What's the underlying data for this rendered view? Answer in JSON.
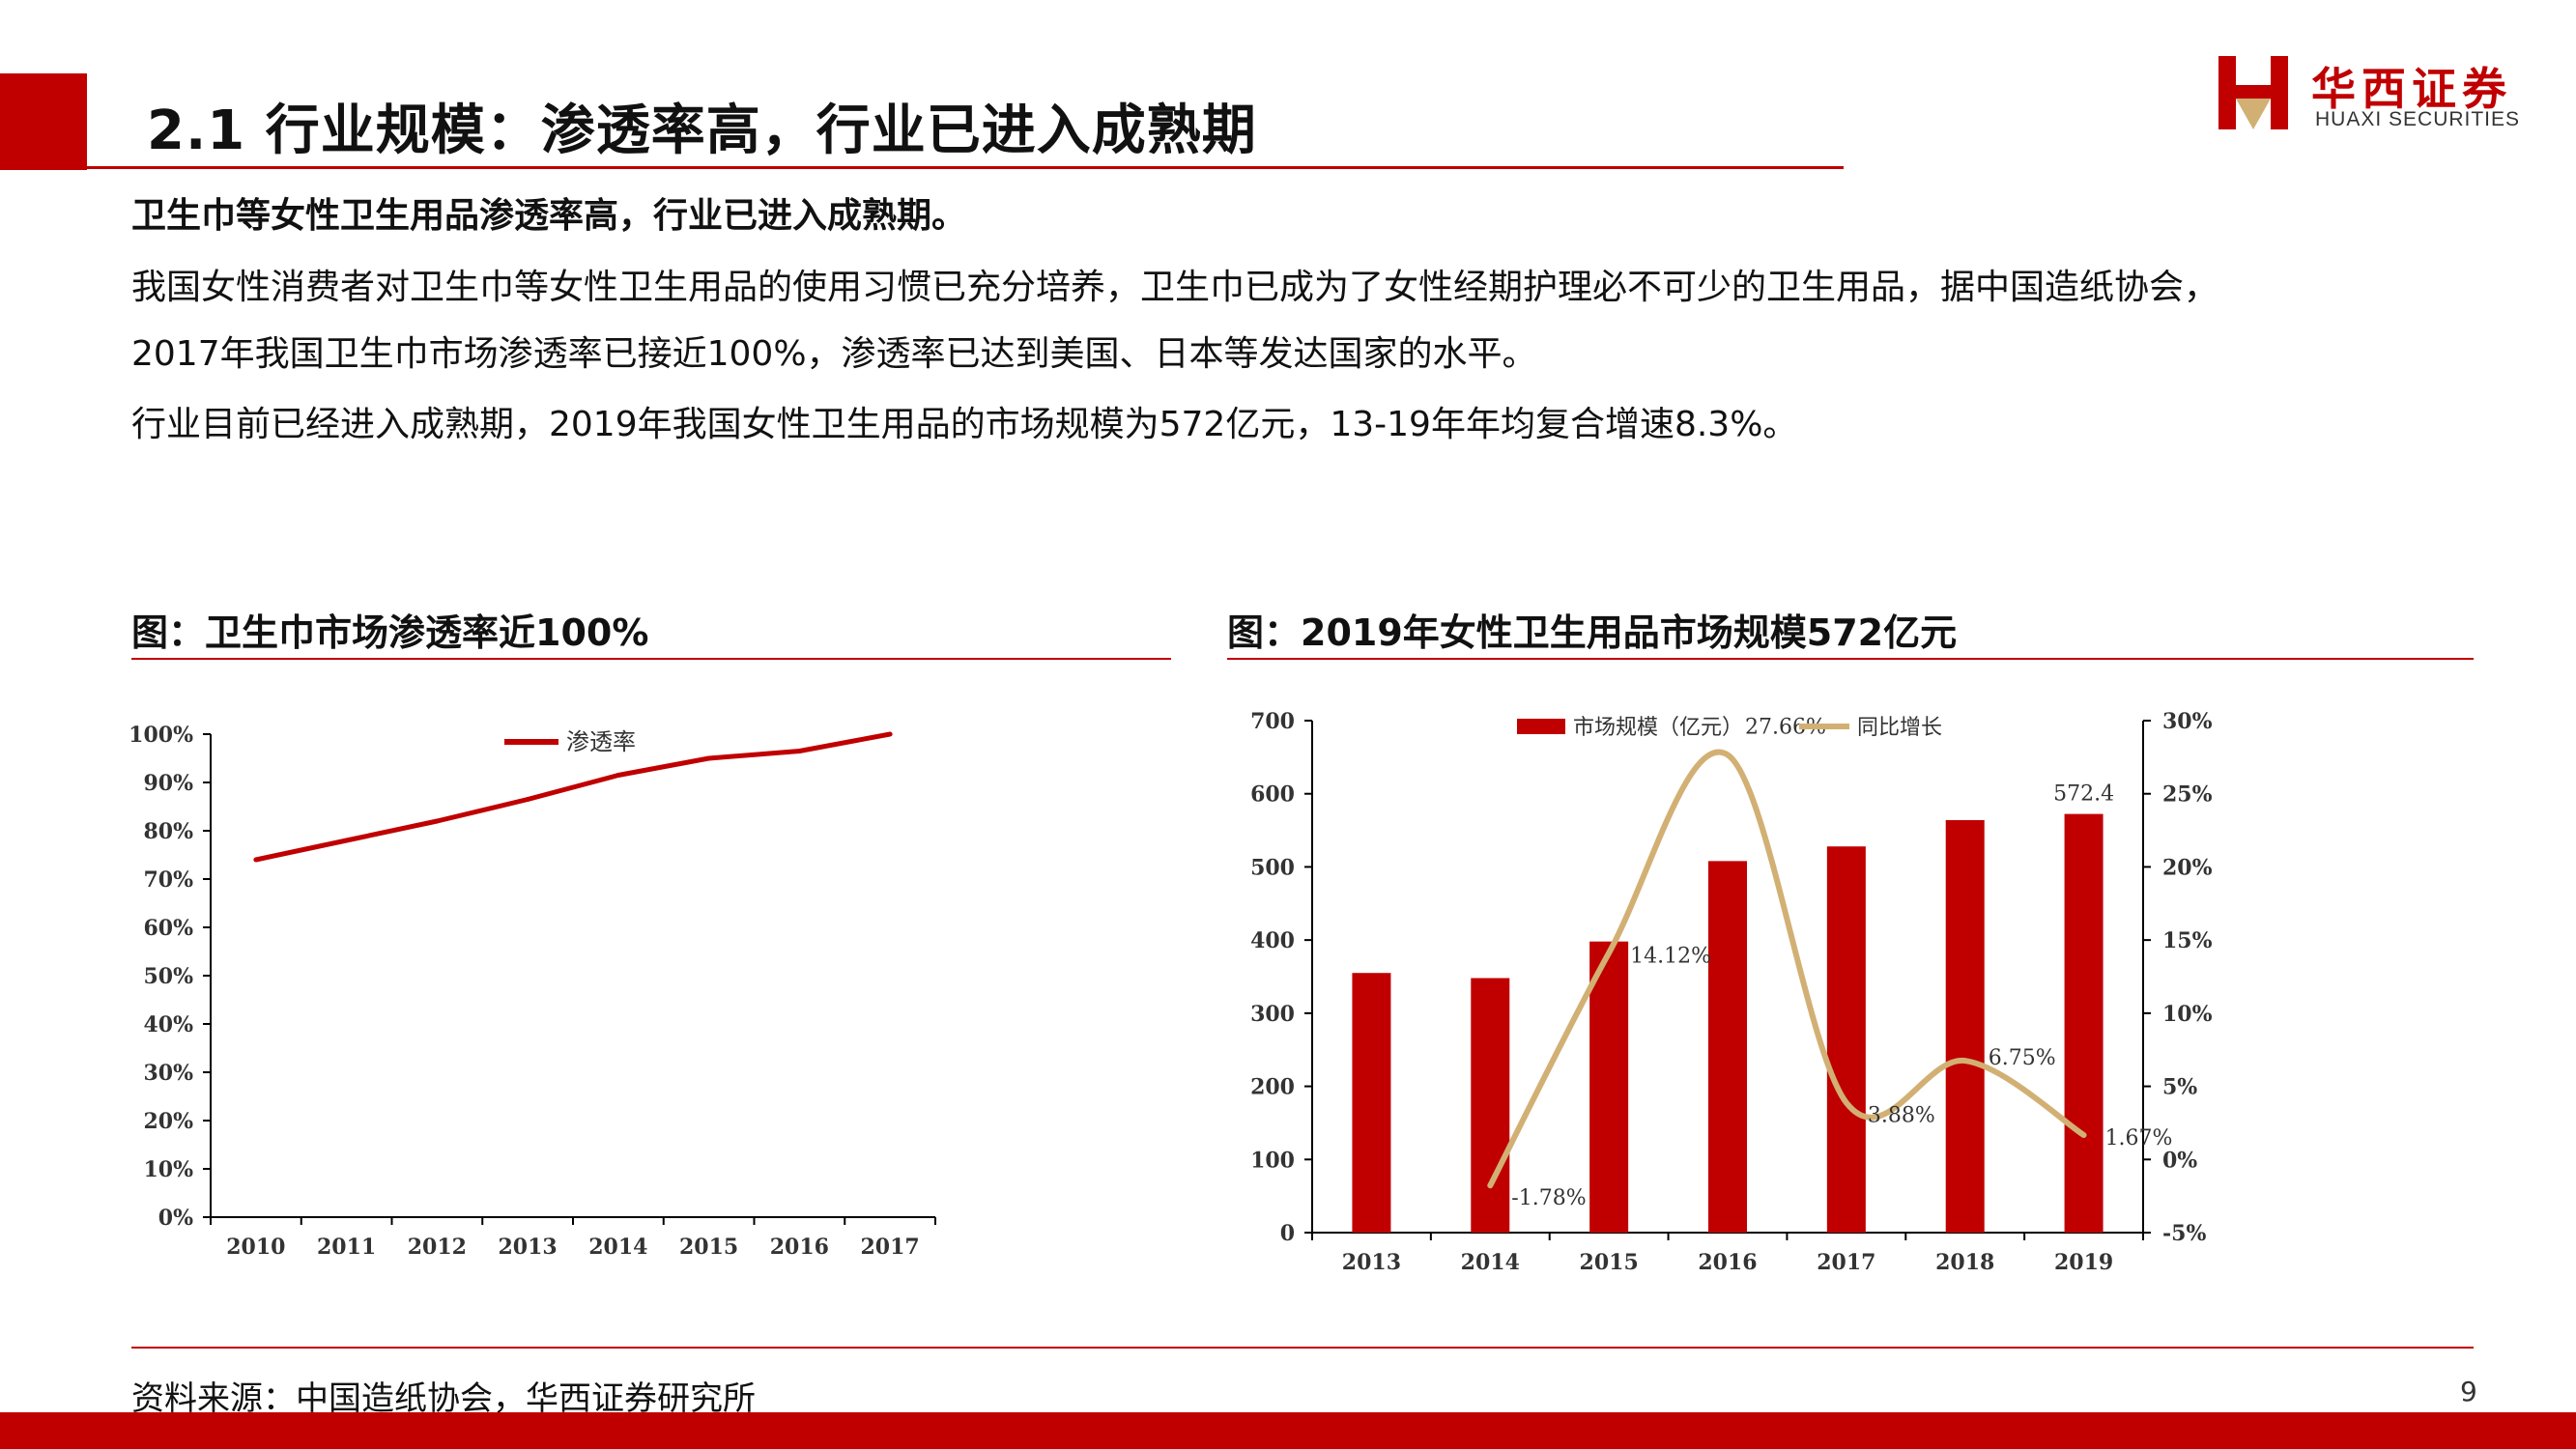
{
  "header": {
    "title": "2.1 行业规模：渗透率高，行业已进入成熟期",
    "logo_cn": "华西证券",
    "logo_en": "HUAXI SECURITIES"
  },
  "body": {
    "heading": "卫生巾等女性卫生用品渗透率高，行业已进入成熟期。",
    "para1_line1": "我国女性消费者对卫生巾等女性卫生用品的使用习惯已充分培养，卫生巾已成为了女性经期护理必不可少的卫生用品，据中国造纸协会，",
    "para1_line2": "2017年我国卫生巾市场渗透率已接近100%，渗透率已达到美国、日本等发达国家的水平。",
    "para2": "行业目前已经进入成熟期，2019年我国女性卫生用品的市场规模为572亿元，13-19年年均复合增速8.3%。"
  },
  "figures": {
    "left_title": "图：卫生巾市场渗透率近100%",
    "right_title": "图：2019年女性卫生用品市场规模572亿元"
  },
  "footer": {
    "source": "资料来源：中国造纸协会，华西证券研究所",
    "page": "9"
  },
  "colors": {
    "brand_red": "#c00000",
    "line_tan": "#d2b074"
  },
  "chart_data": [
    {
      "type": "line",
      "categories": [
        "2010",
        "2011",
        "2012",
        "2013",
        "2014",
        "2015",
        "2016",
        "2017"
      ],
      "series": [
        {
          "name": "渗透率",
          "values": [
            74,
            78,
            82,
            86.5,
            91.5,
            95,
            96.5,
            100
          ]
        }
      ],
      "ylim": [
        0,
        100
      ],
      "y_ticks": [
        "0%",
        "10%",
        "20%",
        "30%",
        "40%",
        "50%",
        "60%",
        "70%",
        "80%",
        "90%",
        "100%"
      ],
      "grid": false,
      "legend": "top-center"
    },
    {
      "type": "bar",
      "categories": [
        "2013",
        "2014",
        "2015",
        "2016",
        "2017",
        "2018",
        "2019"
      ],
      "series": [
        {
          "name": "市场规模（亿元）",
          "type": "bar",
          "axis": "left",
          "values": [
            355,
            348,
            398,
            508,
            528,
            564,
            572.4
          ]
        },
        {
          "name": "同比增长",
          "type": "line",
          "axis": "right",
          "values": [
            null,
            -1.78,
            14.12,
            27.66,
            3.88,
            6.75,
            1.67
          ]
        }
      ],
      "bar_labels": [
        "",
        "",
        "",
        "",
        "",
        "",
        "572.4"
      ],
      "line_labels": [
        "",
        "-1.78%",
        "14.12%",
        "27.66%",
        "3.88%",
        "6.75%",
        "1.67%"
      ],
      "ylim_left": [
        0,
        700
      ],
      "y_ticks_left": [
        "0",
        "100",
        "200",
        "300",
        "400",
        "500",
        "600",
        "700"
      ],
      "ylim_right": [
        -5,
        30
      ],
      "y_ticks_right": [
        "-5%",
        "0%",
        "5%",
        "10%",
        "15%",
        "20%",
        "25%",
        "30%"
      ],
      "grid": false,
      "legend": "top-center"
    }
  ]
}
